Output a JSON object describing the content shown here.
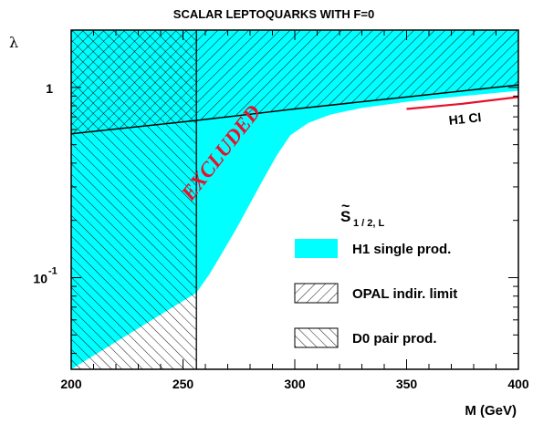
{
  "chart_data": {
    "type": "area",
    "title": "SCALAR LEPTOQUARKS WITH F=0",
    "xlabel": "M (GeV)",
    "ylabel": "λ",
    "xlim": [
      200,
      400
    ],
    "ylim": [
      0.033,
      2.0
    ],
    "yscale": "log",
    "grid": false,
    "xticks": [
      "200",
      "250",
      "300",
      "350",
      "400"
    ],
    "yticks": [
      {
        "base": "1",
        "exp": "",
        "value": 1
      },
      {
        "base": "10",
        "exp": "-1",
        "value": 0.1
      }
    ],
    "annotation": "EXCLUDED",
    "legend_header": {
      "symbol": "S",
      "accent": "~",
      "subscript": "1 / 2, L"
    },
    "legend": [
      {
        "label": "H1 single prod.",
        "style": "solid",
        "color": "#00ffff"
      },
      {
        "label": "OPAL indir. limit",
        "style": "hatch-diagonal-right"
      },
      {
        "label": "D0 pair prod.",
        "style": "hatch-diagonal-left"
      }
    ],
    "series": [
      {
        "name": "H1 single prod.",
        "style": "filled-cyan",
        "color": "#00ffff",
        "x": [
          200,
          256,
          262,
          268,
          274,
          280,
          286,
          292,
          298,
          306,
          316,
          330,
          350,
          375,
          400
        ],
        "y": [
          0.033,
          0.0833,
          0.105,
          0.138,
          0.182,
          0.245,
          0.33,
          0.44,
          0.56,
          0.65,
          0.72,
          0.78,
          0.84,
          0.9,
          0.96
        ]
      },
      {
        "name": "OPAL indir. limit",
        "style": "hatch-diagonal-right",
        "x": [
          200,
          256,
          300,
          350,
          400
        ],
        "y": [
          0.57,
          0.67,
          0.77,
          0.89,
          1.03
        ]
      },
      {
        "name": "D0 pair prod.",
        "style": "hatch-diagonal-left",
        "x": [
          256,
          256
        ],
        "y": [
          0.033,
          2.0
        ]
      },
      {
        "name": "H1 CI",
        "label": "H1 CI",
        "style": "line",
        "color": "#e8102a",
        "x": [
          350,
          375,
          400
        ],
        "y": [
          0.77,
          0.82,
          0.89
        ]
      }
    ]
  }
}
